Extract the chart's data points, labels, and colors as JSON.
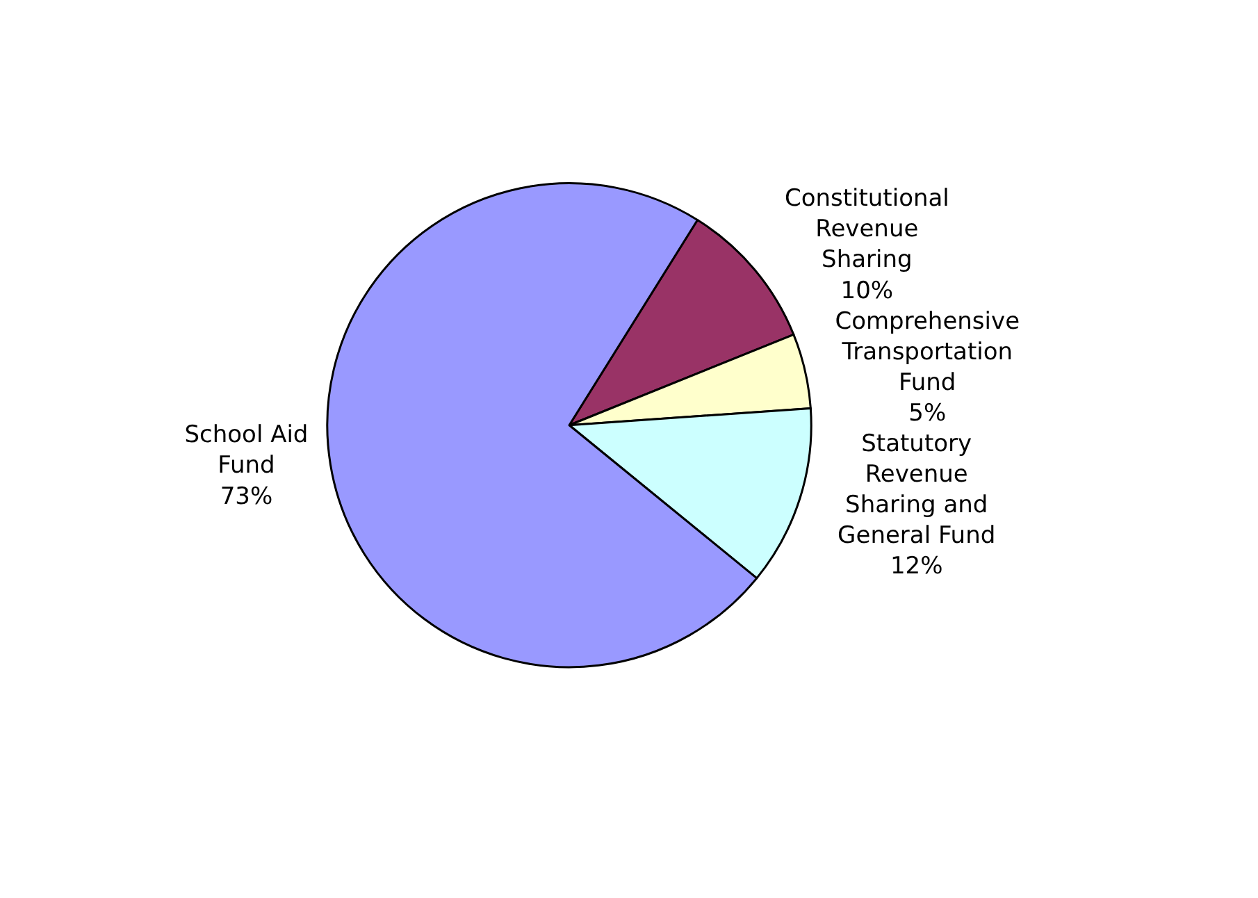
{
  "chart_data": {
    "type": "pie",
    "categories": [
      "Constitutional\nRevenue\nSharing",
      "Comprehensive\nTransportation\nFund",
      "Statutory\nRevenue\nSharing and\nGeneral Fund",
      "School Aid\nFund"
    ],
    "values": [
      10,
      5,
      12,
      73
    ],
    "colors": [
      "#993366",
      "#ffffcc",
      "#ccffff",
      "#9999ff"
    ],
    "value_labels": [
      "10%",
      "5%",
      "12%",
      "73%"
    ],
    "legend": false
  }
}
